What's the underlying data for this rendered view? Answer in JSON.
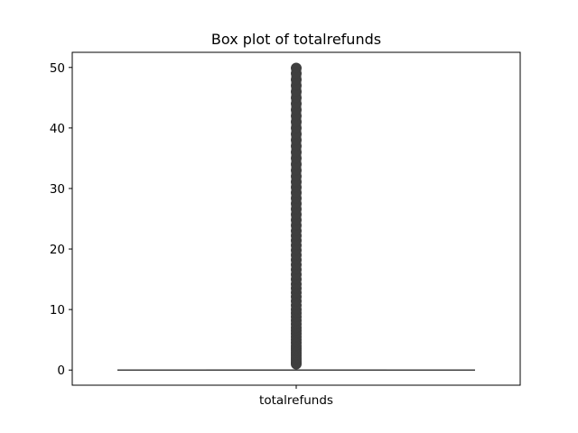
{
  "chart_data": {
    "type": "box",
    "title": "Box plot of totalrefunds",
    "xlabel": "",
    "ylabel": "",
    "categories": [
      "totalrefunds"
    ],
    "ylim": [
      -2.5,
      52.5
    ],
    "yticks": [
      0,
      10,
      20,
      30,
      40,
      50
    ],
    "grid": false,
    "box": {
      "min": 0,
      "q1": 0,
      "median": 0,
      "q3": 0,
      "max": 0
    },
    "outlier_range": [
      1,
      50
    ],
    "outliers": [
      1.0,
      1.3,
      1.7,
      2.0,
      2.4,
      2.8,
      3.2,
      3.6,
      4.0,
      4.5,
      5.0,
      5.5,
      6.0,
      6.5,
      7.0,
      7.6,
      8.2,
      8.8,
      9.4,
      10.0,
      10.7,
      11.4,
      12.1,
      12.8,
      13.5,
      14.2,
      15.0,
      15.8,
      16.6,
      17.4,
      18.2,
      19.0,
      19.8,
      20.6,
      21.4,
      22.2,
      23.0,
      23.9,
      24.8,
      25.7,
      26.6,
      27.5,
      28.4,
      29.3,
      30.2,
      31.1,
      32.0,
      33.0,
      34.0,
      35.0,
      36.0,
      37.0,
      38.0,
      39.0,
      40.0,
      41.0,
      42.0,
      43.0,
      44.0,
      45.0,
      46.0,
      47.0,
      48.0,
      49.0,
      49.9
    ],
    "colors": {
      "box_line": "#3f3f3f",
      "outlier": "#3f3f3f",
      "axis": "#000000"
    }
  }
}
